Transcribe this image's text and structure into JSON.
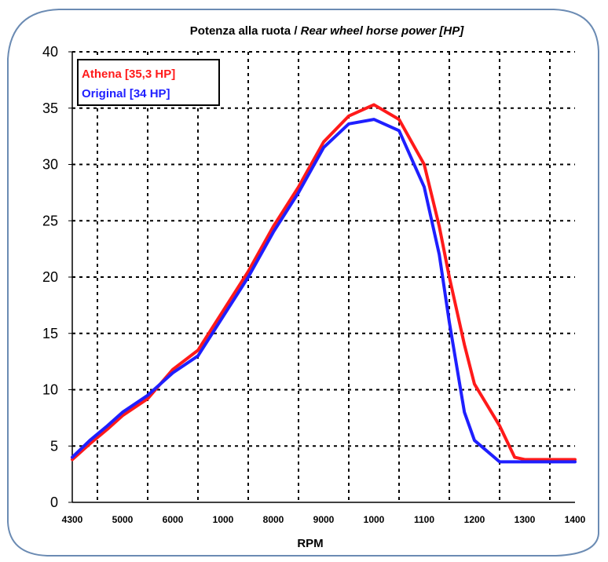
{
  "chart_data": {
    "type": "line",
    "title_main": "Potenza alla ruota / ",
    "title_italic": "Rear wheel horse power [HP]",
    "xlabel": "RPM",
    "ylabel": "",
    "ylim": [
      0,
      40
    ],
    "yticks": [
      "0",
      "5",
      "10",
      "15",
      "20",
      "25",
      "30",
      "35",
      "40"
    ],
    "x_categories": [
      "4300",
      "5000",
      "6000",
      "1000",
      "8000",
      "9000",
      "1000",
      "1100",
      "1200",
      "1300",
      "1400"
    ],
    "grid": true,
    "legend_position": "top-left",
    "series": [
      {
        "name": "Athena [35,3 HP]",
        "color": "#ff1a1a",
        "x": [
          0.0,
          0.35,
          0.7,
          1.0,
          1.5,
          2.0,
          2.5,
          3.0,
          3.5,
          4.0,
          4.5,
          5.0,
          5.5,
          6.0,
          6.5,
          7.0,
          7.3,
          7.5,
          7.8,
          8.0,
          8.5,
          8.8,
          9.0,
          9.5,
          9.8,
          10.0
        ],
        "y": [
          3.8,
          5.2,
          6.5,
          7.7,
          9.2,
          11.8,
          13.5,
          17.0,
          20.5,
          24.5,
          28.0,
          32.0,
          34.3,
          35.3,
          34.0,
          30.0,
          24.5,
          20.0,
          14.0,
          10.5,
          6.8,
          4.0,
          3.8,
          3.8,
          3.8,
          3.8
        ]
      },
      {
        "name": "Original [34 HP]",
        "color": "#1f1fff",
        "x": [
          0.0,
          0.35,
          0.7,
          1.0,
          1.5,
          2.0,
          2.5,
          3.0,
          3.5,
          4.0,
          4.5,
          5.0,
          5.5,
          6.0,
          6.5,
          7.0,
          7.3,
          7.5,
          7.8,
          8.0,
          8.5,
          8.8,
          9.0,
          9.5,
          9.8,
          10.0
        ],
        "y": [
          4.0,
          5.5,
          6.8,
          8.0,
          9.5,
          11.5,
          13.0,
          16.5,
          20.0,
          24.0,
          27.5,
          31.5,
          33.6,
          34.0,
          33.0,
          28.0,
          22.0,
          16.0,
          8.0,
          5.5,
          3.6,
          3.6,
          3.6,
          3.6,
          3.6,
          3.6
        ]
      }
    ]
  }
}
